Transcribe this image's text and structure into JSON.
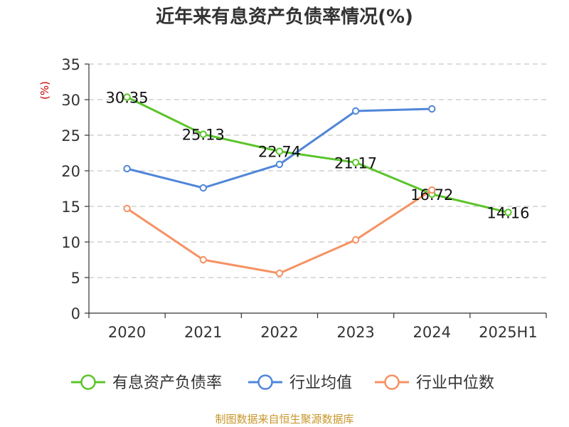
{
  "chart_data": {
    "type": "line",
    "title": "近年来有息资产负债率情况(%)",
    "y_unit": "(%)",
    "categories": [
      "2020",
      "2021",
      "2022",
      "2023",
      "2024",
      "2025H1"
    ],
    "ylim": [
      0,
      35
    ],
    "yticks": [
      0,
      5,
      10,
      15,
      20,
      25,
      30,
      35
    ],
    "grid": true,
    "legend_position": "bottom",
    "series": [
      {
        "name": "有息资产负债率",
        "color": "#5bc42b",
        "values": [
          30.35,
          25.13,
          22.74,
          21.17,
          16.72,
          14.16
        ],
        "labels": [
          "30.35",
          "25.13",
          "22.74",
          "21.17",
          "16.72",
          "14.16"
        ]
      },
      {
        "name": "行业均值",
        "color": "#4f86d9",
        "values": [
          20.3,
          17.6,
          20.9,
          28.4,
          28.7,
          null
        ]
      },
      {
        "name": "行业中位数",
        "color": "#f59263",
        "values": [
          14.7,
          7.5,
          5.6,
          10.3,
          17.3,
          null
        ]
      }
    ]
  },
  "source_note": "制图数据来自恒生聚源数据库"
}
